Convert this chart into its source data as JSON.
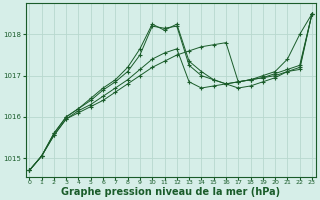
{
  "bg_color": "#d6eee8",
  "grid_color": "#b8d8ce",
  "line_color": "#1a5c2a",
  "xlabel": "Graphe pression niveau de la mer (hPa)",
  "xlabel_fontsize": 7.0,
  "yticks": [
    1015,
    1016,
    1017,
    1018
  ],
  "xticks": [
    0,
    1,
    2,
    3,
    4,
    5,
    6,
    7,
    8,
    9,
    10,
    11,
    12,
    13,
    14,
    15,
    16,
    17,
    18,
    19,
    20,
    21,
    22,
    23
  ],
  "xlim": [
    -0.3,
    23.3
  ],
  "ylim": [
    1014.55,
    1018.75
  ],
  "series": [
    [
      1014.7,
      1015.05,
      1015.55,
      1015.95,
      1016.1,
      1016.25,
      1016.4,
      1016.6,
      1016.8,
      1017.0,
      1017.2,
      1017.35,
      1017.5,
      1017.6,
      1017.7,
      1017.75,
      1017.8,
      1016.85,
      1016.9,
      1017.0,
      1017.1,
      1017.4,
      1018.0,
      1018.5
    ],
    [
      1014.7,
      1015.05,
      1015.55,
      1015.95,
      1016.15,
      1016.3,
      1016.5,
      1016.7,
      1016.9,
      1017.15,
      1017.4,
      1017.55,
      1017.65,
      1016.85,
      1016.7,
      1016.75,
      1016.8,
      1016.85,
      1016.9,
      1016.95,
      1017.0,
      1017.1,
      1017.15,
      1018.5
    ],
    [
      1014.7,
      1015.05,
      1015.6,
      1016.0,
      1016.2,
      1016.4,
      1016.65,
      1016.85,
      1017.1,
      1017.5,
      1018.2,
      1018.15,
      1018.2,
      1017.25,
      1017.0,
      1016.9,
      1016.8,
      1016.85,
      1016.9,
      1016.95,
      1017.05,
      1017.15,
      1017.25,
      1018.5
    ],
    [
      1014.7,
      1015.05,
      1015.6,
      1016.0,
      1016.2,
      1016.45,
      1016.7,
      1016.9,
      1017.2,
      1017.65,
      1018.25,
      1018.1,
      1018.25,
      1017.35,
      1017.1,
      1016.9,
      1016.8,
      1016.7,
      1016.75,
      1016.85,
      1016.95,
      1017.1,
      1017.2,
      1018.5
    ]
  ]
}
